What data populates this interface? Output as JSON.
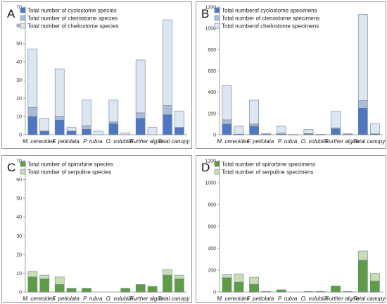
{
  "colors": {
    "dark_blue": "#4f78c4",
    "mid_blue": "#a9bcdc",
    "light_blue": "#dde6f3",
    "dark_green": "#5e9c45",
    "light_green": "#c5dfb2",
    "bar_stroke": "#6d7e8c",
    "axis": "#888888",
    "frame": "#9a9a9a"
  },
  "chart_data": [
    {
      "type": "bar",
      "panel_label": "A",
      "stacked": true,
      "grouped": true,
      "categories": [
        "M. cereoides",
        "F. petiolata",
        "P. rubra",
        "O. volubilis",
        "Further algae",
        "Total canopy"
      ],
      "ylim": [
        0,
        70
      ],
      "yticks": [
        0,
        10,
        20,
        30,
        40,
        50,
        60,
        70
      ],
      "grid": false,
      "legend_position": "top-left",
      "bars_per_category": 2,
      "series": [
        {
          "name": "Total number of cyclostome species",
          "color_key": "dark_blue",
          "values": [
            [
              10,
              2
            ],
            [
              8,
              2
            ],
            [
              3,
              0
            ],
            [
              6,
              0
            ],
            [
              9,
              0
            ],
            [
              11,
              4
            ]
          ]
        },
        {
          "name": "Total number of ctenostome species",
          "color_key": "mid_blue",
          "values": [
            [
              5,
              0
            ],
            [
              2,
              0
            ],
            [
              2,
              0
            ],
            [
              1,
              0
            ],
            [
              3,
              0
            ],
            [
              5,
              0
            ]
          ]
        },
        {
          "name": "Total number of cheilostome species",
          "color_key": "light_blue",
          "values": [
            [
              32,
              7
            ],
            [
              26,
              2
            ],
            [
              14,
              2
            ],
            [
              12,
              1
            ],
            [
              29,
              4
            ],
            [
              47,
              9
            ]
          ]
        }
      ]
    },
    {
      "type": "bar",
      "panel_label": "B",
      "stacked": true,
      "grouped": true,
      "categories": [
        "M. cereoides",
        "F. petiolata",
        "P. rubra",
        "O. volubilis",
        "Further algae",
        "Total canopy"
      ],
      "ylim": [
        0,
        1200
      ],
      "yticks": [
        0,
        200,
        400,
        600,
        800,
        1000,
        1200
      ],
      "grid": false,
      "legend_position": "top-left",
      "bars_per_category": 2,
      "series": [
        {
          "name": "Total numberof cyclostome specimens",
          "color_key": "dark_blue",
          "values": [
            [
              100,
              5
            ],
            [
              80,
              3
            ],
            [
              5,
              0
            ],
            [
              5,
              0
            ],
            [
              55,
              3
            ],
            [
              250,
              8
            ]
          ]
        },
        {
          "name": "Total number of ctenostome specimens",
          "color_key": "mid_blue",
          "values": [
            [
              40,
              0
            ],
            [
              20,
              0
            ],
            [
              10,
              0
            ],
            [
              5,
              0
            ],
            [
              10,
              0
            ],
            [
              70,
              0
            ]
          ]
        },
        {
          "name": "Total numberof cheilostome specimens",
          "color_key": "light_blue",
          "values": [
            [
              320,
              75
            ],
            [
              225,
              7
            ],
            [
              65,
              2
            ],
            [
              40,
              3
            ],
            [
              155,
              7
            ],
            [
              810,
              95
            ]
          ]
        }
      ]
    },
    {
      "type": "bar",
      "panel_label": "C",
      "stacked": true,
      "grouped": true,
      "categories": [
        "M. cereoides",
        "F. petiolata",
        "P. rubra",
        "O. volubilis",
        "Further algae",
        "Total canopy"
      ],
      "ylim": [
        0,
        70
      ],
      "yticks": [
        0,
        10,
        20,
        30,
        40,
        50,
        60,
        70
      ],
      "grid": false,
      "legend_position": "top-left",
      "bars_per_category": 2,
      "series": [
        {
          "name": "Total number of spirorbine species",
          "color_key": "dark_green",
          "values": [
            [
              8,
              7
            ],
            [
              4,
              2
            ],
            [
              2,
              0
            ],
            [
              0,
              2
            ],
            [
              4,
              3
            ],
            [
              9,
              7
            ]
          ]
        },
        {
          "name": "Total number of serpuline species",
          "color_key": "light_green",
          "values": [
            [
              3,
              2
            ],
            [
              4,
              0
            ],
            [
              0,
              0
            ],
            [
              0,
              0
            ],
            [
              0,
              0
            ],
            [
              3,
              2
            ]
          ]
        }
      ]
    },
    {
      "type": "bar",
      "panel_label": "D",
      "stacked": true,
      "grouped": true,
      "categories": [
        "M. cereoides",
        "F. petiolata",
        "P. rubra",
        "O. volubilis",
        "Further algae",
        "Total canopy"
      ],
      "ylim": [
        0,
        1200
      ],
      "yticks": [
        0,
        200,
        400,
        600,
        800,
        1000,
        1200
      ],
      "grid": false,
      "legend_position": "top-left",
      "bars_per_category": 2,
      "series": [
        {
          "name": "Total number of spirorbine specimens",
          "color_key": "dark_green",
          "values": [
            [
              130,
              90
            ],
            [
              70,
              5
            ],
            [
              20,
              0
            ],
            [
              5,
              5
            ],
            [
              55,
              5
            ],
            [
              290,
              100
            ]
          ]
        },
        {
          "name": "Total number of serpuline specimens",
          "color_key": "light_green",
          "values": [
            [
              30,
              75
            ],
            [
              65,
              0
            ],
            [
              0,
              0
            ],
            [
              0,
              0
            ],
            [
              0,
              0
            ],
            [
              85,
              70
            ]
          ]
        }
      ]
    }
  ]
}
